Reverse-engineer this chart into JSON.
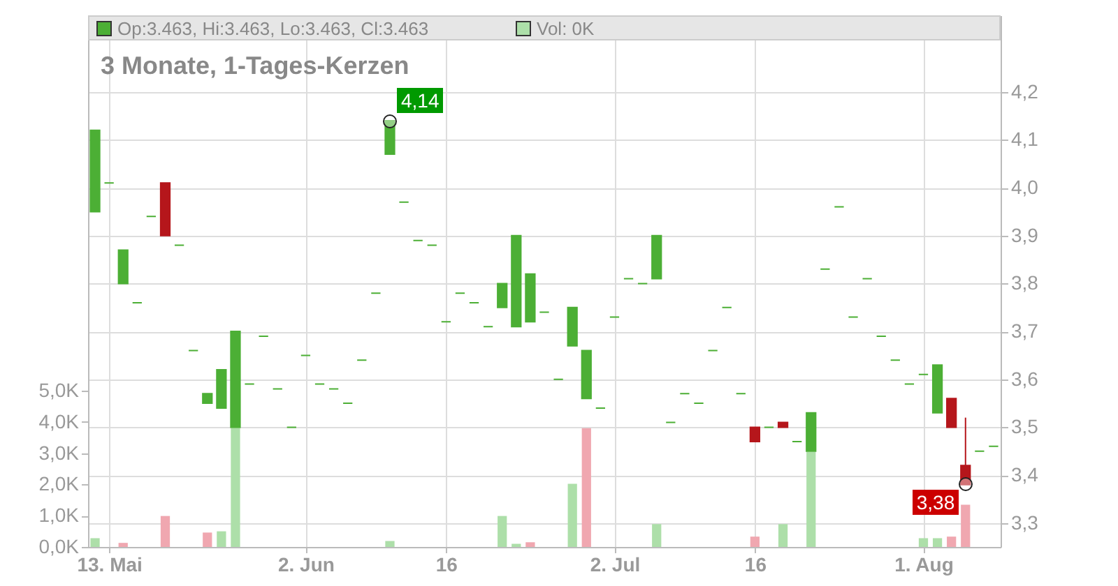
{
  "chart_data": {
    "type": "candlestick",
    "title": "3 Monate, 1-Tages-Kerzen",
    "annotations": [
      "Op:3.463, Hi:3.463, Lo:3.463, Cl:3.463",
      "Vol: 0K",
      "4,14",
      "3,38"
    ],
    "categories": [
      null,
      "13. Mai",
      null,
      null,
      null,
      null,
      null,
      null,
      null,
      null,
      null,
      null,
      null,
      null,
      null,
      "2. Jun",
      null,
      null,
      null,
      null,
      null,
      null,
      null,
      null,
      null,
      "16",
      null,
      null,
      null,
      null,
      null,
      null,
      null,
      null,
      null,
      null,
      null,
      "2. Jul",
      null,
      null,
      null,
      null,
      null,
      null,
      null,
      null,
      null,
      "16",
      null,
      null,
      null,
      null,
      null,
      null,
      null,
      null,
      null,
      null,
      null,
      "1. Aug",
      null,
      null,
      null,
      null,
      null
    ],
    "ohlc": [
      [
        3.95,
        4.12,
        3.95,
        4.12
      ],
      [
        4.01,
        4.01,
        4.01,
        4.01
      ],
      [
        3.8,
        3.87,
        3.8,
        3.87
      ],
      [
        3.76,
        3.76,
        3.76,
        3.76
      ],
      [
        3.94,
        3.94,
        3.94,
        3.94
      ],
      [
        4.01,
        4.01,
        3.9,
        3.9
      ],
      [
        3.88,
        3.88,
        3.88,
        3.88
      ],
      [
        3.66,
        3.66,
        3.66,
        3.66
      ],
      [
        3.55,
        3.57,
        3.55,
        3.57
      ],
      [
        3.54,
        3.62,
        3.54,
        3.62
      ],
      [
        3.5,
        3.7,
        3.5,
        3.7
      ],
      [
        3.59,
        3.59,
        3.59,
        3.59
      ],
      [
        3.69,
        3.69,
        3.69,
        3.69
      ],
      [
        3.58,
        3.58,
        3.58,
        3.58
      ],
      [
        3.5,
        3.5,
        3.5,
        3.5
      ],
      [
        3.65,
        3.65,
        3.65,
        3.65
      ],
      [
        3.59,
        3.59,
        3.59,
        3.59
      ],
      [
        3.58,
        3.58,
        3.58,
        3.58
      ],
      [
        3.55,
        3.55,
        3.55,
        3.55
      ],
      [
        3.64,
        3.64,
        3.64,
        3.64
      ],
      [
        3.78,
        3.78,
        3.78,
        3.78
      ],
      [
        4.07,
        4.14,
        4.07,
        4.14
      ],
      [
        3.97,
        3.97,
        3.97,
        3.97
      ],
      [
        3.89,
        3.89,
        3.89,
        3.89
      ],
      [
        3.88,
        3.88,
        3.88,
        3.88
      ],
      [
        3.72,
        3.72,
        3.72,
        3.72
      ],
      [
        3.78,
        3.78,
        3.78,
        3.78
      ],
      [
        3.76,
        3.76,
        3.76,
        3.76
      ],
      [
        3.71,
        3.71,
        3.71,
        3.71
      ],
      [
        3.75,
        3.8,
        3.75,
        3.8
      ],
      [
        3.71,
        3.9,
        3.71,
        3.9
      ],
      [
        3.72,
        3.82,
        3.72,
        3.82
      ],
      [
        3.74,
        3.74,
        3.74,
        3.74
      ],
      [
        3.6,
        3.6,
        3.6,
        3.6
      ],
      [
        3.67,
        3.75,
        3.67,
        3.75
      ],
      [
        3.56,
        3.66,
        3.56,
        3.66
      ],
      [
        3.54,
        3.54,
        3.54,
        3.54
      ],
      [
        3.73,
        3.73,
        3.73,
        3.73
      ],
      [
        3.81,
        3.81,
        3.81,
        3.81
      ],
      [
        3.8,
        3.8,
        3.8,
        3.8
      ],
      [
        3.81,
        3.9,
        3.81,
        3.9
      ],
      [
        3.51,
        3.51,
        3.51,
        3.51
      ],
      [
        3.57,
        3.57,
        3.57,
        3.57
      ],
      [
        3.55,
        3.55,
        3.55,
        3.55
      ],
      [
        3.66,
        3.66,
        3.66,
        3.66
      ],
      [
        3.75,
        3.75,
        3.75,
        3.75
      ],
      [
        3.57,
        3.57,
        3.57,
        3.57
      ],
      [
        3.5,
        3.5,
        3.47,
        3.47
      ],
      [
        3.5,
        3.5,
        3.5,
        3.5
      ],
      [
        3.51,
        3.51,
        3.5,
        3.5
      ],
      [
        3.47,
        3.47,
        3.47,
        3.47
      ],
      [
        3.45,
        3.53,
        3.45,
        3.53
      ],
      [
        3.83,
        3.83,
        3.83,
        3.83
      ],
      [
        3.96,
        3.96,
        3.96,
        3.96
      ],
      [
        3.73,
        3.73,
        3.73,
        3.73
      ],
      [
        3.81,
        3.81,
        3.81,
        3.81
      ],
      [
        3.69,
        3.69,
        3.69,
        3.69
      ],
      [
        3.64,
        3.64,
        3.64,
        3.64
      ],
      [
        3.59,
        3.59,
        3.59,
        3.59
      ],
      [
        3.61,
        3.61,
        3.61,
        3.61
      ],
      [
        3.53,
        3.63,
        3.53,
        3.63
      ],
      [
        3.56,
        3.56,
        3.5,
        3.5
      ],
      [
        3.42,
        3.52,
        3.38,
        3.38
      ],
      [
        3.45,
        3.45,
        3.45,
        3.45
      ],
      [
        3.46,
        3.46,
        3.46,
        3.46
      ]
    ],
    "colors": [
      "#4caf35",
      "#4caf35",
      "#4caf35",
      "#4caf35",
      "#4caf35",
      "#b5161b",
      "#4caf35",
      "#4caf35",
      "#4caf35",
      "#4caf35",
      "#4caf35",
      "#4caf35",
      "#4caf35",
      "#4caf35",
      "#4caf35",
      "#4caf35",
      "#4caf35",
      "#4caf35",
      "#4caf35",
      "#4caf35",
      "#4caf35",
      "#4caf35",
      "#4caf35",
      "#4caf35",
      "#4caf35",
      "#4caf35",
      "#4caf35",
      "#4caf35",
      "#4caf35",
      "#4caf35",
      "#4caf35",
      "#4caf35",
      "#4caf35",
      "#4caf35",
      "#4caf35",
      "#4caf35",
      "#4caf35",
      "#4caf35",
      "#4caf35",
      "#4caf35",
      "#4caf35",
      "#4caf35",
      "#4caf35",
      "#4caf35",
      "#4caf35",
      "#4caf35",
      "#4caf35",
      "#b5161b",
      "#4caf35",
      "#b5161b",
      "#4caf35",
      "#4caf35",
      "#4caf35",
      "#4caf35",
      "#4caf35",
      "#4caf35",
      "#4caf35",
      "#4caf35",
      "#4caf35",
      "#4caf35",
      "#4caf35",
      "#b5161b",
      "#b5161b",
      "#4caf35",
      "#4caf35"
    ],
    "series": [
      {
        "type": "bar",
        "axis": "y2",
        "values": [
          0.28,
          0,
          0.13,
          0,
          0,
          0.99,
          0,
          0,
          0.46,
          0.5,
          3.86,
          0,
          0,
          0,
          0,
          0,
          0,
          0,
          0,
          0,
          0,
          0.19,
          0,
          0,
          0,
          0,
          0,
          0,
          0,
          0.99,
          0.1,
          0.15,
          0,
          0,
          2.02,
          3.8,
          0,
          0,
          0,
          0,
          0.73,
          0,
          0,
          0,
          0,
          0,
          0,
          0.33,
          0,
          0.73,
          0,
          3.04,
          0,
          0,
          0,
          0,
          0,
          0,
          0,
          0.28,
          0.28,
          0.33,
          1.35,
          0,
          0
        ],
        "colors": [
          "#addfa9",
          "#addfa9",
          "#f0a7b0",
          "#addfa9",
          "#addfa9",
          "#f0a7b0",
          "#addfa9",
          "#addfa9",
          "#f0a7b0",
          "#addfa9",
          "#addfa9",
          "#addfa9",
          "#addfa9",
          "#addfa9",
          "#addfa9",
          "#addfa9",
          "#addfa9",
          "#addfa9",
          "#addfa9",
          "#addfa9",
          "#addfa9",
          "#addfa9",
          "#addfa9",
          "#addfa9",
          "#addfa9",
          "#addfa9",
          "#addfa9",
          "#addfa9",
          "#addfa9",
          "#addfa9",
          "#addfa9",
          "#f0a7b0",
          "#addfa9",
          "#addfa9",
          "#addfa9",
          "#f0a7b0",
          "#addfa9",
          "#addfa9",
          "#addfa9",
          "#addfa9",
          "#addfa9",
          "#addfa9",
          "#addfa9",
          "#addfa9",
          "#addfa9",
          "#addfa9",
          "#addfa9",
          "#f0a7b0",
          "#addfa9",
          "#addfa9",
          "#addfa9",
          "#addfa9",
          "#addfa9",
          "#addfa9",
          "#addfa9",
          "#addfa9",
          "#addfa9",
          "#addfa9",
          "#addfa9",
          "#addfa9",
          "#addfa9",
          "#f0a7b0",
          "#f0a7b0",
          "#addfa9",
          "#addfa9"
        ]
      }
    ],
    "ylim": [
      3.25,
      4.36
    ],
    "yticks": [
      {
        "value": 3.3,
        "label": "3,3"
      },
      {
        "value": 3.4,
        "label": "3,4"
      },
      {
        "value": 3.5,
        "label": "3,5"
      },
      {
        "value": 3.6,
        "label": "3,6"
      },
      {
        "value": 3.7,
        "label": "3,7"
      },
      {
        "value": 3.8,
        "label": "3,8"
      },
      {
        "value": 3.9,
        "label": "3,9"
      },
      {
        "value": 4.0,
        "label": "4,0"
      },
      {
        "value": 4.1,
        "label": "4,1"
      },
      {
        "value": 4.2,
        "label": "4,2"
      }
    ],
    "y2lim": [
      0,
      17
    ],
    "y2ticks": [
      {
        "value": 0,
        "label": "0,0K"
      },
      {
        "value": 1,
        "label": "1,0K"
      },
      {
        "value": 2,
        "label": "2,0K"
      },
      {
        "value": 3,
        "label": "3,0K"
      },
      {
        "value": 4,
        "label": "4,0K"
      },
      {
        "value": 5,
        "label": "5,0K"
      }
    ],
    "grid": true
  }
}
